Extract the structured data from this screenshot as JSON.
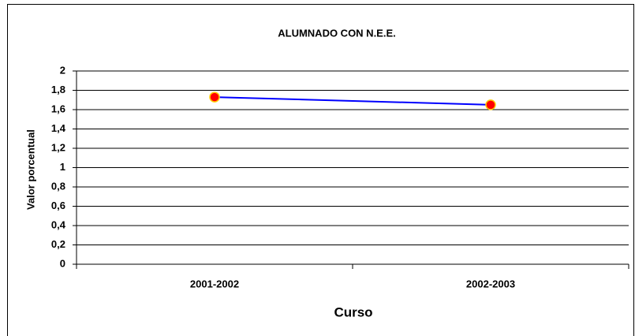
{
  "chart_data": {
    "type": "line",
    "title": "ALUMNADO CON N.E.E.",
    "x_label": "Curso",
    "y_label": "Valor porcentual",
    "categories": [
      "2001-2002",
      "2002-2003"
    ],
    "series": [
      {
        "name": "ALUMNADO CON N.E.E.",
        "color": "#0000ff",
        "marker_color": "#ff0000",
        "marker_edge": "#ffcc00",
        "values": [
          1.73,
          1.65
        ]
      }
    ],
    "ylim": [
      0,
      2
    ],
    "yticks": [
      0,
      {
        "value": 0.2,
        "label": "0,2"
      },
      {
        "value": 0.4,
        "label": "0,4"
      },
      {
        "value": 0.6,
        "label": "0,6"
      },
      {
        "value": 0.8,
        "label": "0,8"
      },
      1,
      {
        "value": 1.2,
        "label": "1,2"
      },
      {
        "value": 1.4,
        "label": "1,4"
      },
      {
        "value": 1.6,
        "label": "1,6"
      },
      {
        "value": 1.8,
        "label": "1,8"
      },
      2
    ],
    "grid": true
  }
}
